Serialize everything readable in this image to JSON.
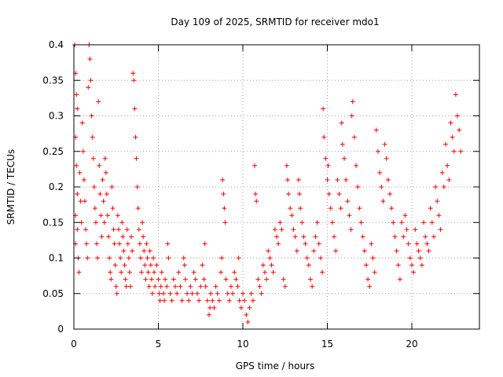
{
  "chart_data": {
    "type": "scatter",
    "title": "Day 109 of 2025, SRMTID for receiver mdo1",
    "xlabel": "GPS time / hours",
    "ylabel": "SRMTID / TECUs",
    "xlim": [
      0,
      24
    ],
    "ylim": [
      0,
      0.4
    ],
    "x_ticks": [
      0,
      5,
      10,
      15,
      20
    ],
    "y_ticks": [
      0,
      0.05,
      0.1,
      0.15,
      0.2,
      0.25,
      0.3,
      0.35,
      0.4
    ],
    "x_tick_labels": [
      "0",
      "5",
      "10",
      "15",
      "20"
    ],
    "y_tick_labels": [
      "0",
      "0.05",
      "0.1",
      "0.15",
      "0.2",
      "0.25",
      "0.3",
      "0.35",
      "0.4"
    ],
    "grid": true,
    "marker": "+",
    "color": "#ff0000",
    "series": [
      {
        "name": "SRMTID",
        "points": [
          [
            0.05,
            0.4
          ],
          [
            0.1,
            0.36
          ],
          [
            0.15,
            0.33
          ],
          [
            0.2,
            0.31
          ],
          [
            0.1,
            0.27
          ],
          [
            0.15,
            0.23
          ],
          [
            0.2,
            0.19
          ],
          [
            0.1,
            0.16
          ],
          [
            0.2,
            0.14
          ],
          [
            0.1,
            0.12
          ],
          [
            0.25,
            0.1
          ],
          [
            0.3,
            0.08
          ],
          [
            0.35,
            0.22
          ],
          [
            0.4,
            0.18
          ],
          [
            0.45,
            0.15
          ],
          [
            0.5,
            0.29
          ],
          [
            0.55,
            0.25
          ],
          [
            0.6,
            0.21
          ],
          [
            0.65,
            0.18
          ],
          [
            0.7,
            0.14
          ],
          [
            0.75,
            0.12
          ],
          [
            0.8,
            0.1
          ],
          [
            0.85,
            0.34
          ],
          [
            0.9,
            0.4
          ],
          [
            0.95,
            0.38
          ],
          [
            1.0,
            0.35
          ],
          [
            1.05,
            0.3
          ],
          [
            1.1,
            0.27
          ],
          [
            1.15,
            0.24
          ],
          [
            1.2,
            0.2
          ],
          [
            1.25,
            0.17
          ],
          [
            1.3,
            0.15
          ],
          [
            1.35,
            0.12
          ],
          [
            1.4,
            0.1
          ],
          [
            1.45,
            0.32
          ],
          [
            1.5,
            0.23
          ],
          [
            1.55,
            0.19
          ],
          [
            1.6,
            0.16
          ],
          [
            1.65,
            0.13
          ],
          [
            1.7,
            0.21
          ],
          [
            1.75,
            0.18
          ],
          [
            1.8,
            0.15
          ],
          [
            1.85,
            0.24
          ],
          [
            1.9,
            0.22
          ],
          [
            1.95,
            0.19
          ],
          [
            2.0,
            0.16
          ],
          [
            2.05,
            0.13
          ],
          [
            2.1,
            0.1
          ],
          [
            2.15,
            0.08
          ],
          [
            2.2,
            0.07
          ],
          [
            2.25,
            0.2
          ],
          [
            2.3,
            0.17
          ],
          [
            2.35,
            0.14
          ],
          [
            2.4,
            0.12
          ],
          [
            2.45,
            0.09
          ],
          [
            2.5,
            0.06
          ],
          [
            2.55,
            0.05
          ],
          [
            2.6,
            0.16
          ],
          [
            2.65,
            0.14
          ],
          [
            2.7,
            0.12
          ],
          [
            2.75,
            0.1
          ],
          [
            2.8,
            0.08
          ],
          [
            2.85,
            0.15
          ],
          [
            2.9,
            0.13
          ],
          [
            2.95,
            0.11
          ],
          [
            3.0,
            0.09
          ],
          [
            3.05,
            0.07
          ],
          [
            3.1,
            0.06
          ],
          [
            3.15,
            0.14
          ],
          [
            3.2,
            0.12
          ],
          [
            3.25,
            0.1
          ],
          [
            3.3,
            0.08
          ],
          [
            3.35,
            0.06
          ],
          [
            3.4,
            0.13
          ],
          [
            3.45,
            0.11
          ],
          [
            3.5,
            0.36
          ],
          [
            3.55,
            0.35
          ],
          [
            3.6,
            0.31
          ],
          [
            3.65,
            0.27
          ],
          [
            3.7,
            0.24
          ],
          [
            3.75,
            0.2
          ],
          [
            3.8,
            0.17
          ],
          [
            3.85,
            0.14
          ],
          [
            3.9,
            0.12
          ],
          [
            3.95,
            0.1
          ],
          [
            4.0,
            0.08
          ],
          [
            4.05,
            0.15
          ],
          [
            4.1,
            0.13
          ],
          [
            4.15,
            0.11
          ],
          [
            4.2,
            0.09
          ],
          [
            4.25,
            0.07
          ],
          [
            4.3,
            0.12
          ],
          [
            4.35,
            0.1
          ],
          [
            4.4,
            0.08
          ],
          [
            4.45,
            0.06
          ],
          [
            4.5,
            0.11
          ],
          [
            4.55,
            0.09
          ],
          [
            4.6,
            0.07
          ],
          [
            4.65,
            0.05
          ],
          [
            4.7,
            0.1
          ],
          [
            4.75,
            0.08
          ],
          [
            4.8,
            0.06
          ],
          [
            4.9,
            0.09
          ],
          [
            5.0,
            0.07
          ],
          [
            5.05,
            0.05
          ],
          [
            5.1,
            0.04
          ],
          [
            5.15,
            0.06
          ],
          [
            5.2,
            0.08
          ],
          [
            5.3,
            0.05
          ],
          [
            5.35,
            0.04
          ],
          [
            5.4,
            0.07
          ],
          [
            5.5,
            0.06
          ],
          [
            5.55,
            0.12
          ],
          [
            5.6,
            0.1
          ],
          [
            5.7,
            0.05
          ],
          [
            5.8,
            0.04
          ],
          [
            5.9,
            0.07
          ],
          [
            6.0,
            0.06
          ],
          [
            6.1,
            0.05
          ],
          [
            6.2,
            0.08
          ],
          [
            6.3,
            0.06
          ],
          [
            6.4,
            0.04
          ],
          [
            6.5,
            0.1
          ],
          [
            6.55,
            0.09
          ],
          [
            6.6,
            0.07
          ],
          [
            6.7,
            0.05
          ],
          [
            6.8,
            0.04
          ],
          [
            6.9,
            0.06
          ],
          [
            7.0,
            0.05
          ],
          [
            7.1,
            0.08
          ],
          [
            7.2,
            0.07
          ],
          [
            7.3,
            0.05
          ],
          [
            7.4,
            0.04
          ],
          [
            7.5,
            0.06
          ],
          [
            7.6,
            0.09
          ],
          [
            7.7,
            0.07
          ],
          [
            7.75,
            0.12
          ],
          [
            7.8,
            0.06
          ],
          [
            7.9,
            0.04
          ],
          [
            8.0,
            0.02
          ],
          [
            8.05,
            0.03
          ],
          [
            8.1,
            0.05
          ],
          [
            8.2,
            0.04
          ],
          [
            8.3,
            0.03
          ],
          [
            8.4,
            0.06
          ],
          [
            8.5,
            0.05
          ],
          [
            8.6,
            0.04
          ],
          [
            8.7,
            0.08
          ],
          [
            8.75,
            0.1
          ],
          [
            8.8,
            0.21
          ],
          [
            8.85,
            0.19
          ],
          [
            8.9,
            0.17
          ],
          [
            8.95,
            0.15
          ],
          [
            9.0,
            0.07
          ],
          [
            9.1,
            0.05
          ],
          [
            9.2,
            0.04
          ],
          [
            9.3,
            0.06
          ],
          [
            9.4,
            0.05
          ],
          [
            9.5,
            0.08
          ],
          [
            9.6,
            0.07
          ],
          [
            9.7,
            0.06
          ],
          [
            9.75,
            0.1
          ],
          [
            9.8,
            0.04
          ],
          [
            9.9,
            0.03
          ],
          [
            10.0,
            0.05
          ],
          [
            10.1,
            0.04
          ],
          [
            10.2,
            0.02
          ],
          [
            10.3,
            0.01
          ],
          [
            10.4,
            0.03
          ],
          [
            10.5,
            0.05
          ],
          [
            10.6,
            0.04
          ],
          [
            10.7,
            0.23
          ],
          [
            10.75,
            0.19
          ],
          [
            10.8,
            0.18
          ],
          [
            10.9,
            0.07
          ],
          [
            11.0,
            0.06
          ],
          [
            11.1,
            0.05
          ],
          [
            11.2,
            0.09
          ],
          [
            11.3,
            0.08
          ],
          [
            11.4,
            0.07
          ],
          [
            11.5,
            0.11
          ],
          [
            11.6,
            0.1
          ],
          [
            11.7,
            0.09
          ],
          [
            11.8,
            0.08
          ],
          [
            11.9,
            0.14
          ],
          [
            12.0,
            0.13
          ],
          [
            12.1,
            0.12
          ],
          [
            12.2,
            0.15
          ],
          [
            12.3,
            0.14
          ],
          [
            12.4,
            0.07
          ],
          [
            12.5,
            0.06
          ],
          [
            12.6,
            0.23
          ],
          [
            12.65,
            0.21
          ],
          [
            12.7,
            0.19
          ],
          [
            12.8,
            0.17
          ],
          [
            12.9,
            0.16
          ],
          [
            13.0,
            0.14
          ],
          [
            13.1,
            0.13
          ],
          [
            13.2,
            0.11
          ],
          [
            13.3,
            0.21
          ],
          [
            13.35,
            0.19
          ],
          [
            13.4,
            0.17
          ],
          [
            13.5,
            0.15
          ],
          [
            13.6,
            0.13
          ],
          [
            13.7,
            0.12
          ],
          [
            13.8,
            0.1
          ],
          [
            13.9,
            0.09
          ],
          [
            14.0,
            0.07
          ],
          [
            14.1,
            0.06
          ],
          [
            14.2,
            0.11
          ],
          [
            14.3,
            0.13
          ],
          [
            14.4,
            0.15
          ],
          [
            14.5,
            0.12
          ],
          [
            14.6,
            0.1
          ],
          [
            14.7,
            0.08
          ],
          [
            14.75,
            0.31
          ],
          [
            14.8,
            0.27
          ],
          [
            14.9,
            0.24
          ],
          [
            15.0,
            0.21
          ],
          [
            15.05,
            0.23
          ],
          [
            15.1,
            0.19
          ],
          [
            15.2,
            0.17
          ],
          [
            15.3,
            0.15
          ],
          [
            15.4,
            0.13
          ],
          [
            15.5,
            0.11
          ],
          [
            15.6,
            0.21
          ],
          [
            15.7,
            0.19
          ],
          [
            15.8,
            0.17
          ],
          [
            15.85,
            0.29
          ],
          [
            15.9,
            0.26
          ],
          [
            16.0,
            0.24
          ],
          [
            16.1,
            0.21
          ],
          [
            16.2,
            0.18
          ],
          [
            16.3,
            0.16
          ],
          [
            16.4,
            0.14
          ],
          [
            16.45,
            0.3
          ],
          [
            16.5,
            0.32
          ],
          [
            16.6,
            0.27
          ],
          [
            16.7,
            0.23
          ],
          [
            16.8,
            0.2
          ],
          [
            16.9,
            0.17
          ],
          [
            17.0,
            0.15
          ],
          [
            17.1,
            0.13
          ],
          [
            17.2,
            0.11
          ],
          [
            17.3,
            0.09
          ],
          [
            17.4,
            0.07
          ],
          [
            17.5,
            0.06
          ],
          [
            17.6,
            0.12
          ],
          [
            17.7,
            0.1
          ],
          [
            17.8,
            0.08
          ],
          [
            17.9,
            0.28
          ],
          [
            18.0,
            0.25
          ],
          [
            18.1,
            0.22
          ],
          [
            18.2,
            0.2
          ],
          [
            18.3,
            0.18
          ],
          [
            18.4,
            0.26
          ],
          [
            18.5,
            0.24
          ],
          [
            18.6,
            0.21
          ],
          [
            18.7,
            0.19
          ],
          [
            18.8,
            0.17
          ],
          [
            18.9,
            0.15
          ],
          [
            19.0,
            0.13
          ],
          [
            19.1,
            0.11
          ],
          [
            19.2,
            0.09
          ],
          [
            19.3,
            0.07
          ],
          [
            19.4,
            0.15
          ],
          [
            19.5,
            0.13
          ],
          [
            19.6,
            0.16
          ],
          [
            19.7,
            0.14
          ],
          [
            19.8,
            0.12
          ],
          [
            19.9,
            0.1
          ],
          [
            20.0,
            0.09
          ],
          [
            20.1,
            0.08
          ],
          [
            20.2,
            0.14
          ],
          [
            20.3,
            0.12
          ],
          [
            20.4,
            0.11
          ],
          [
            20.5,
            0.1
          ],
          [
            20.6,
            0.09
          ],
          [
            20.7,
            0.15
          ],
          [
            20.8,
            0.13
          ],
          [
            20.9,
            0.12
          ],
          [
            21.0,
            0.11
          ],
          [
            21.1,
            0.17
          ],
          [
            21.2,
            0.15
          ],
          [
            21.3,
            0.13
          ],
          [
            21.4,
            0.2
          ],
          [
            21.5,
            0.18
          ],
          [
            21.6,
            0.16
          ],
          [
            21.7,
            0.14
          ],
          [
            21.8,
            0.22
          ],
          [
            21.9,
            0.2
          ],
          [
            22.0,
            0.26
          ],
          [
            22.1,
            0.23
          ],
          [
            22.2,
            0.21
          ],
          [
            22.3,
            0.29
          ],
          [
            22.4,
            0.27
          ],
          [
            22.5,
            0.25
          ],
          [
            22.6,
            0.33
          ],
          [
            22.7,
            0.3
          ],
          [
            22.8,
            0.28
          ],
          [
            22.9,
            0.25
          ]
        ]
      }
    ]
  }
}
